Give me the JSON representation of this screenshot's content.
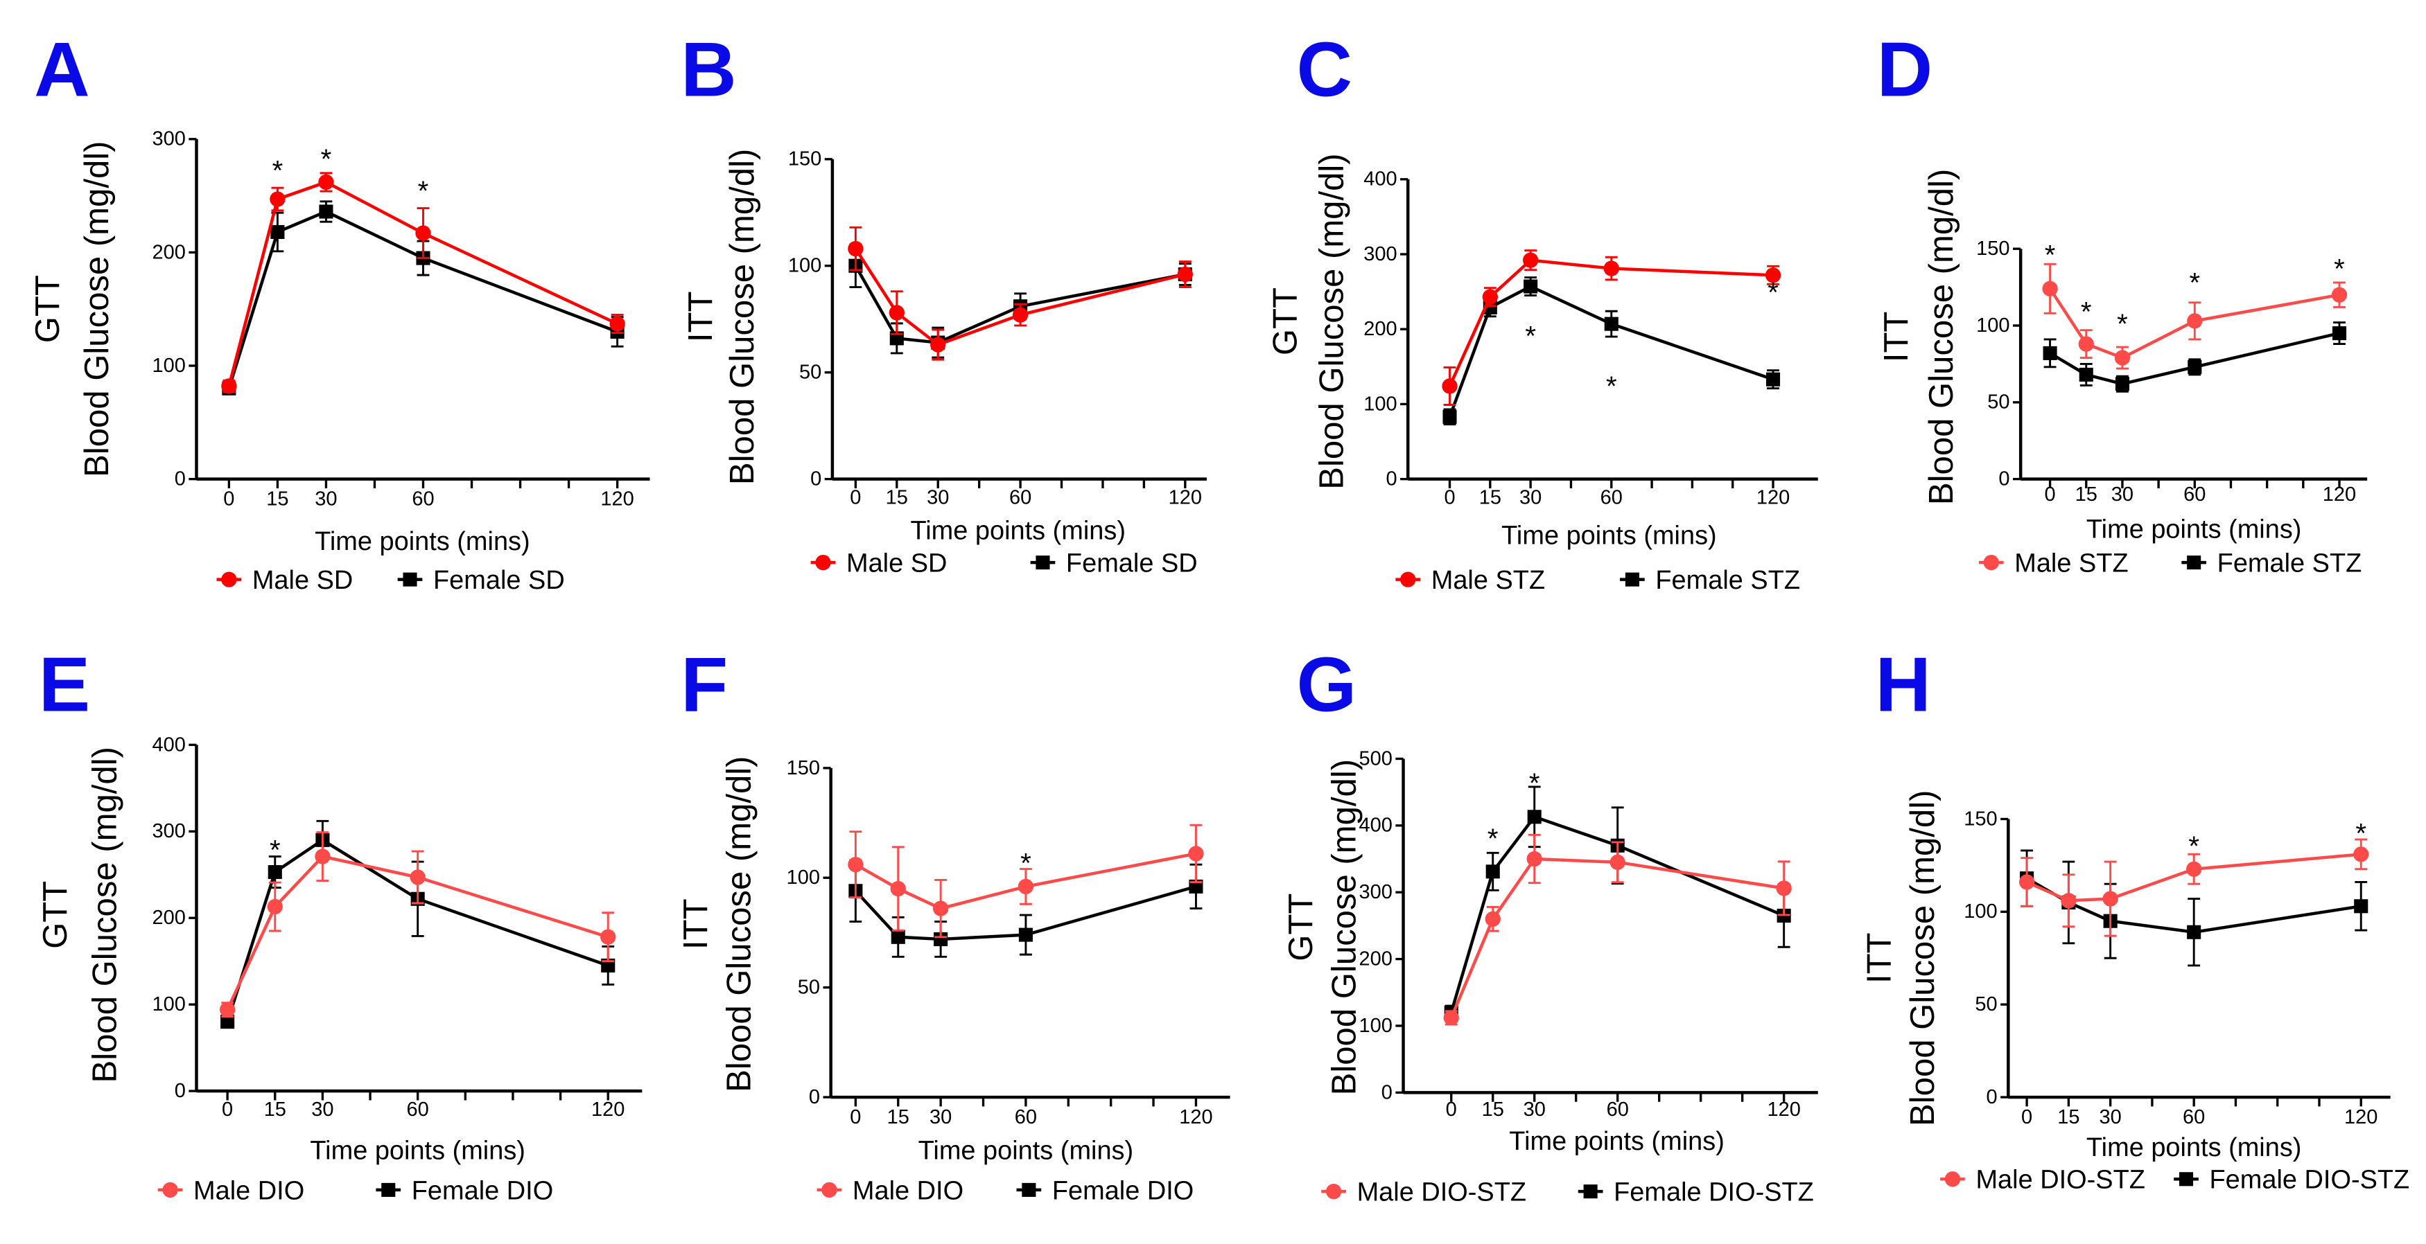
{
  "chart_data": [
    {
      "panel": "A",
      "type": "line",
      "test": "GTT",
      "ylabel": "Blood Glucose (mg/dl)",
      "xlabel": "Time points (mins)",
      "x": [
        0,
        15,
        30,
        60,
        120
      ],
      "xticks": [
        0,
        15,
        30,
        60,
        120
      ],
      "ylim": [
        0,
        300
      ],
      "yticks": [
        0,
        100,
        200,
        300
      ],
      "series": [
        {
          "name": "Male SD",
          "color": "#ff0000",
          "marker": "circle",
          "values": [
            82,
            247,
            262,
            217,
            137
          ],
          "errors": [
            5,
            10,
            8,
            22,
            8
          ]
        },
        {
          "name": "Female SD",
          "color": "#000000",
          "marker": "square",
          "values": [
            80,
            218,
            236,
            195,
            130
          ],
          "errors": [
            5,
            17,
            9,
            15,
            13
          ]
        }
      ],
      "annotations": [
        {
          "text": "*",
          "x": 15,
          "y": 275
        },
        {
          "text": "*",
          "x": 30,
          "y": 285
        },
        {
          "text": "*",
          "x": 60,
          "y": 257
        }
      ]
    },
    {
      "panel": "B",
      "type": "line",
      "test": "ITT",
      "ylabel": "Blood Glucose (mg/dl)",
      "xlabel": "Time points (mins)",
      "x": [
        0,
        15,
        30,
        60,
        120
      ],
      "xticks": [
        0,
        15,
        30,
        60,
        120
      ],
      "ylim": [
        0,
        150
      ],
      "yticks": [
        0,
        50,
        100,
        150
      ],
      "series": [
        {
          "name": "Male SD",
          "color": "#ff0000",
          "marker": "circle",
          "values": [
            108,
            78,
            63,
            77,
            96
          ],
          "errors": [
            10,
            10,
            7,
            5,
            6
          ]
        },
        {
          "name": "Female SD",
          "color": "#000000",
          "marker": "square",
          "values": [
            100,
            66,
            64,
            81,
            96
          ],
          "errors": [
            10,
            7,
            7,
            6,
            5
          ]
        }
      ],
      "annotations": []
    },
    {
      "panel": "C",
      "type": "line",
      "test": "GTT",
      "ylabel": "Blood Glucose (mg/dl)",
      "xlabel": "Time points (mins)",
      "x": [
        0,
        15,
        30,
        60,
        120
      ],
      "xticks": [
        0,
        15,
        30,
        60,
        120
      ],
      "ylim": [
        0,
        400
      ],
      "yticks": [
        0,
        100,
        200,
        300,
        400
      ],
      "series": [
        {
          "name": "Male STZ",
          "color": "#ff0000",
          "marker": "circle",
          "values": [
            124,
            243,
            292,
            281,
            272
          ],
          "errors": [
            25,
            12,
            13,
            15,
            12
          ]
        },
        {
          "name": "Female STZ",
          "color": "#000000",
          "marker": "square",
          "values": [
            83,
            229,
            257,
            207,
            133
          ],
          "errors": [
            10,
            12,
            12,
            17,
            12
          ]
        }
      ],
      "annotations": [
        {
          "text": "*",
          "x": 30,
          "y": 195
        },
        {
          "text": "*",
          "x": 60,
          "y": 128
        },
        {
          "text": "*",
          "x": 120,
          "y": 253
        }
      ]
    },
    {
      "panel": "D",
      "type": "line",
      "test": "ITT",
      "ylabel": "Blood Glucose (mg/dl)",
      "xlabel": "Time points (mins)",
      "x": [
        0,
        15,
        30,
        60,
        120
      ],
      "xticks": [
        0,
        15,
        30,
        60,
        120
      ],
      "ylim": [
        0,
        150
      ],
      "yticks": [
        0,
        50,
        100,
        150
      ],
      "series": [
        {
          "name": "Male STZ",
          "color": "#ff4a4a",
          "marker": "circle",
          "values": [
            124,
            88,
            79,
            103,
            120
          ],
          "errors": [
            16,
            9,
            7,
            12,
            8
          ]
        },
        {
          "name": "Female STZ",
          "color": "#000000",
          "marker": "square",
          "values": [
            82,
            68,
            62,
            73,
            95
          ],
          "errors": [
            9,
            7,
            5,
            5,
            7
          ]
        }
      ],
      "annotations": [
        {
          "text": "*",
          "x": 0,
          "y": 148
        },
        {
          "text": "*",
          "x": 15,
          "y": 111
        },
        {
          "text": "*",
          "x": 30,
          "y": 103
        },
        {
          "text": "*",
          "x": 60,
          "y": 130
        },
        {
          "text": "*",
          "x": 120,
          "y": 139
        }
      ]
    },
    {
      "panel": "E",
      "type": "line",
      "test": "GTT",
      "ylabel": "Blood Glucose (mg/dl)",
      "xlabel": "Time points (mins)",
      "x": [
        0,
        15,
        30,
        60,
        120
      ],
      "xticks": [
        0,
        15,
        30,
        60,
        120
      ],
      "ylim": [
        0,
        400
      ],
      "yticks": [
        0,
        100,
        200,
        300,
        400
      ],
      "series": [
        {
          "name": "Male DIO",
          "color": "#ff4a4a",
          "marker": "circle",
          "values": [
            94,
            213,
            271,
            247,
            178
          ],
          "errors": [
            8,
            28,
            28,
            30,
            28
          ]
        },
        {
          "name": "Female DIO",
          "color": "#000000",
          "marker": "square",
          "values": [
            80,
            253,
            290,
            222,
            145
          ],
          "errors": [
            4,
            18,
            22,
            43,
            22
          ]
        }
      ],
      "annotations": [
        {
          "text": "*",
          "x": 15,
          "y": 282
        }
      ]
    },
    {
      "panel": "F",
      "type": "line",
      "test": "ITT",
      "ylabel": "Blood Glucose (mg/dl)",
      "xlabel": "Time points (mins)",
      "x": [
        0,
        15,
        30,
        60,
        120
      ],
      "xticks": [
        0,
        15,
        30,
        60,
        120
      ],
      "ylim": [
        0,
        150
      ],
      "yticks": [
        0,
        50,
        100,
        150
      ],
      "series": [
        {
          "name": "Male DIO",
          "color": "#ff4a4a",
          "marker": "circle",
          "values": [
            106,
            95,
            86,
            96,
            111
          ],
          "errors": [
            15,
            19,
            13,
            8,
            13
          ]
        },
        {
          "name": "Female DIO",
          "color": "#000000",
          "marker": "square",
          "values": [
            94,
            73,
            72,
            74,
            96
          ],
          "errors": [
            14,
            9,
            8,
            9,
            10
          ]
        }
      ],
      "annotations": [
        {
          "text": "*",
          "x": 60,
          "y": 108
        }
      ]
    },
    {
      "panel": "G",
      "type": "line",
      "test": "GTT",
      "ylabel": "Blood Glucose (mg/dl)",
      "xlabel": "Time points (mins)",
      "x": [
        0,
        15,
        30,
        60,
        120
      ],
      "xticks": [
        0,
        15,
        30,
        60,
        120
      ],
      "ylim": [
        0,
        500
      ],
      "yticks": [
        0,
        100,
        200,
        300,
        400,
        500
      ],
      "series": [
        {
          "name": "Male DIO-STZ",
          "color": "#ff4a4a",
          "marker": "circle",
          "values": [
            112,
            260,
            350,
            345,
            306
          ],
          "errors": [
            10,
            18,
            36,
            30,
            40
          ]
        },
        {
          "name": "Female DIO-STZ",
          "color": "#000000",
          "marker": "square",
          "values": [
            120,
            331,
            413,
            370,
            265
          ],
          "errors": [
            10,
            28,
            45,
            57,
            47
          ]
        }
      ],
      "annotations": [
        {
          "text": "*",
          "x": 15,
          "y": 385
        },
        {
          "text": "*",
          "x": 30,
          "y": 468
        }
      ]
    },
    {
      "panel": "H",
      "type": "line",
      "test": "ITT",
      "ylabel": "Blood Glucose (mg/dl)",
      "xlabel": "Time points (mins)",
      "x": [
        0,
        15,
        30,
        60,
        120
      ],
      "xticks": [
        0,
        15,
        30,
        60,
        120
      ],
      "ylim": [
        0,
        150
      ],
      "yticks": [
        0,
        50,
        100,
        150
      ],
      "series": [
        {
          "name": "Male DIO-STZ",
          "color": "#ff4a4a",
          "marker": "circle",
          "values": [
            116,
            106,
            107,
            123,
            131
          ],
          "errors": [
            13,
            14,
            20,
            8,
            8
          ]
        },
        {
          "name": "Female DIO-STZ",
          "color": "#000000",
          "marker": "square",
          "values": [
            118,
            105,
            95,
            89,
            103
          ],
          "errors": [
            15,
            22,
            20,
            18,
            13
          ]
        }
      ],
      "annotations": [
        {
          "text": "*",
          "x": 60,
          "y": 137
        },
        {
          "text": "*",
          "x": 120,
          "y": 144
        }
      ]
    }
  ]
}
